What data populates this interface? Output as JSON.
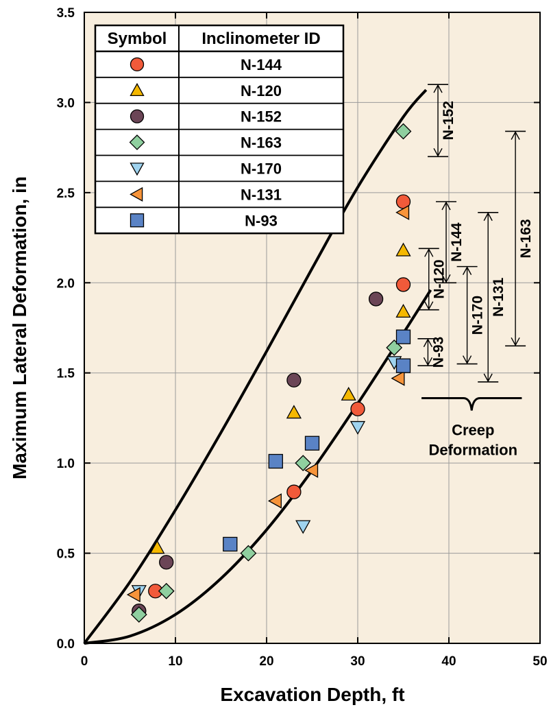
{
  "chart_data": {
    "type": "scatter",
    "title": "",
    "xlabel": "Excavation Depth, ft",
    "ylabel": "Maximum Lateral Deformation, in",
    "xlim": [
      0,
      50
    ],
    "ylim": [
      0,
      3.5
    ],
    "grid": true,
    "legend_position": "top-left",
    "x_ticks": [
      "0",
      "10",
      "20",
      "30",
      "40",
      "50"
    ],
    "y_ticks": [
      "0.0",
      "0.5",
      "1.0",
      "1.5",
      "2.0",
      "2.5",
      "3.0",
      "3.5"
    ],
    "legend": {
      "header_symbol": "Symbol",
      "header_id": "Inclinometer ID"
    },
    "series": [
      {
        "name": "N-144",
        "marker": "circle",
        "color": "#f15a3a",
        "points": [
          [
            7.8,
            0.29
          ],
          [
            23,
            0.84
          ],
          [
            30,
            1.3
          ],
          [
            35,
            2.45
          ],
          [
            35,
            1.99
          ]
        ]
      },
      {
        "name": "N-120",
        "marker": "triangle-up",
        "color": "#f5b800",
        "points": [
          [
            8,
            0.53
          ],
          [
            23,
            1.28
          ],
          [
            29,
            1.38
          ],
          [
            35,
            2.18
          ],
          [
            35,
            1.84
          ]
        ]
      },
      {
        "name": "N-152",
        "marker": "circle",
        "color": "#6b4556",
        "points": [
          [
            6,
            0.18
          ],
          [
            9,
            0.45
          ],
          [
            23,
            1.46
          ],
          [
            32,
            1.91
          ]
        ]
      },
      {
        "name": "N-163",
        "marker": "diamond",
        "color": "#8fcf9f",
        "points": [
          [
            6,
            0.16
          ],
          [
            9,
            0.29
          ],
          [
            18,
            0.5
          ],
          [
            24,
            1.0
          ],
          [
            34,
            1.64
          ],
          [
            35,
            2.84
          ]
        ]
      },
      {
        "name": "N-170",
        "marker": "triangle-down",
        "color": "#9fd3ef",
        "points": [
          [
            6,
            0.29
          ],
          [
            24,
            0.65
          ],
          [
            30,
            1.2
          ],
          [
            34,
            1.56
          ]
        ]
      },
      {
        "name": "N-131",
        "marker": "triangle-left",
        "color": "#f7943a",
        "points": [
          [
            5.5,
            0.27
          ],
          [
            21,
            0.79
          ],
          [
            25,
            0.96
          ],
          [
            34.5,
            1.47
          ],
          [
            35,
            2.39
          ]
        ]
      },
      {
        "name": "N-93",
        "marker": "square",
        "color": "#5a83c5",
        "points": [
          [
            16,
            0.55
          ],
          [
            21,
            1.01
          ],
          [
            25,
            1.11
          ],
          [
            35,
            1.7
          ],
          [
            35,
            1.54
          ]
        ]
      }
    ],
    "curves": [
      {
        "name": "upper bound",
        "x": [
          0,
          5,
          10,
          15,
          20,
          25,
          30,
          35,
          37.5
        ],
        "y": [
          0,
          0.34,
          0.74,
          1.17,
          1.62,
          2.08,
          2.53,
          2.92,
          3.07
        ]
      },
      {
        "name": "lower bound",
        "x": [
          0,
          5,
          10,
          15,
          20,
          25,
          30,
          35,
          38
        ],
        "y": [
          0,
          0.04,
          0.16,
          0.36,
          0.63,
          0.96,
          1.33,
          1.72,
          1.96
        ]
      }
    ],
    "creep_ranges": [
      {
        "label": "N-152",
        "x": 38.8,
        "y_low": 2.7,
        "y_high": 3.1
      },
      {
        "label": "N-120",
        "x": 37.8,
        "y_low": 1.85,
        "y_high": 2.19
      },
      {
        "label": "N-144",
        "x": 39.7,
        "y_low": 2.0,
        "y_high": 2.45
      },
      {
        "label": "N-93",
        "x": 37.7,
        "y_low": 1.54,
        "y_high": 1.69
      },
      {
        "label": "N-170",
        "x": 42.0,
        "y_low": 1.55,
        "y_high": 2.09
      },
      {
        "label": "N-131",
        "x": 44.3,
        "y_low": 1.45,
        "y_high": 2.39
      },
      {
        "label": "N-163",
        "x": 47.3,
        "y_low": 1.65,
        "y_high": 2.84
      }
    ],
    "annotation": {
      "line1": "Creep",
      "line2": "Deformation",
      "x_start": 37,
      "x_end": 48,
      "y": 1.36
    }
  },
  "colors": {
    "plot_background": "#f8eede",
    "grid": "#9a9a9a"
  }
}
